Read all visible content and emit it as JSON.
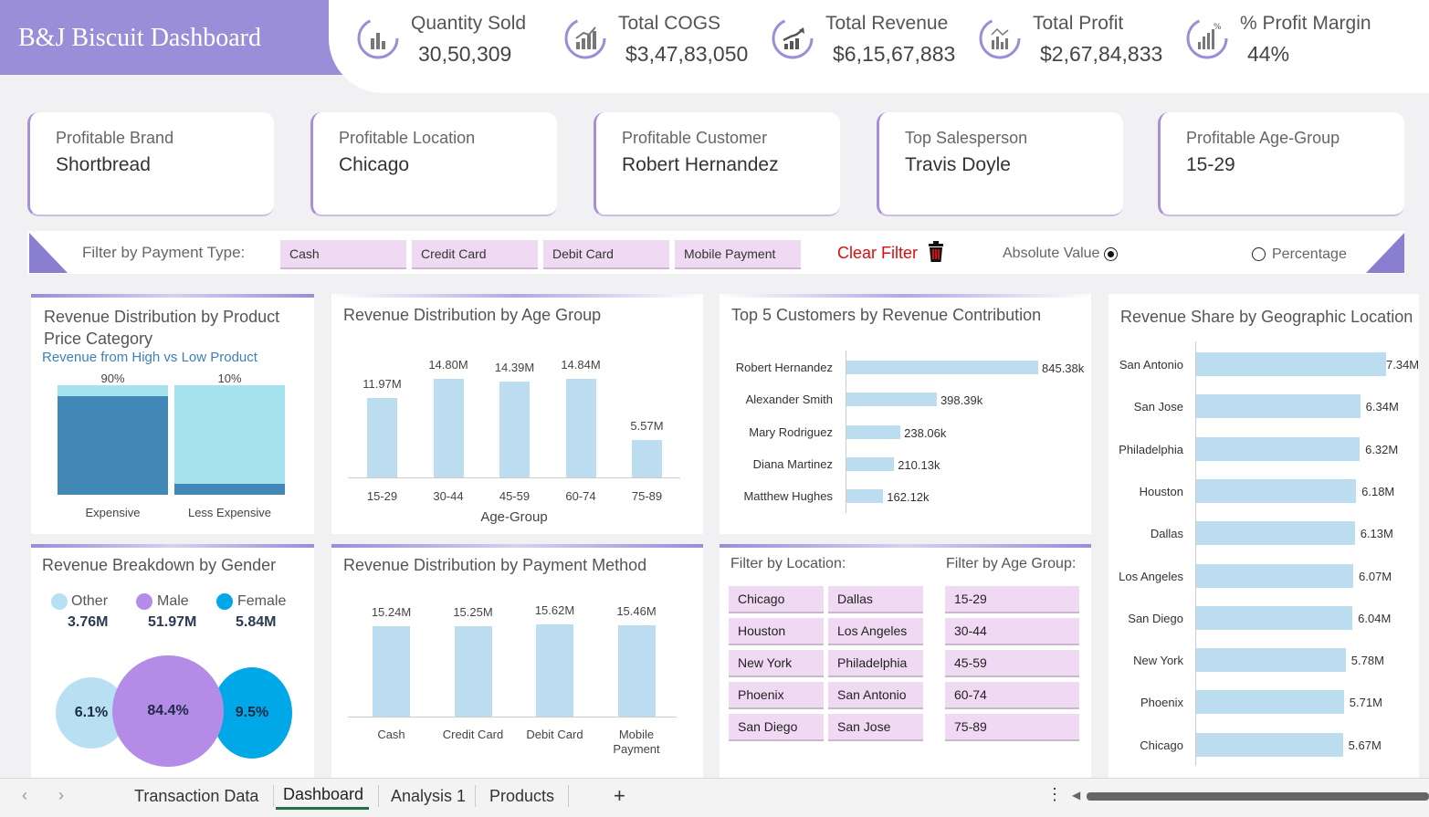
{
  "title": "B&J Biscuit Dashboard",
  "kpis": [
    {
      "icon": "bar-chart-icon",
      "label": "Quantity Sold",
      "value": "30,50,309"
    },
    {
      "icon": "growth-chart-icon",
      "label": "Total COGS",
      "value": "$3,47,83,050"
    },
    {
      "icon": "trend-up-icon",
      "label": "Total Revenue",
      "value": "$6,15,67,883"
    },
    {
      "icon": "analytics-icon",
      "label": "Total Profit",
      "value": "$2,67,84,833"
    },
    {
      "icon": "percent-chart-icon",
      "label": "% Profit Margin",
      "value": "44%"
    }
  ],
  "info_cards": [
    {
      "label": "Profitable Brand",
      "value": "Shortbread"
    },
    {
      "label": "Profitable Location",
      "value": "Chicago"
    },
    {
      "label": "Profitable Customer",
      "value": "Robert Hernandez"
    },
    {
      "label": "Top Salesperson",
      "value": "Travis Doyle"
    },
    {
      "label": "Profitable Age-Group",
      "value": "15-29"
    }
  ],
  "payment_filter": {
    "label": "Filter by Payment Type:",
    "options": [
      "Cash",
      "Credit Card",
      "Debit Card",
      "Mobile Payment"
    ],
    "clear_label": "Clear Filter",
    "absolute_label": "Absolute Value",
    "percentage_label": "Percentage",
    "selected": "Absolute Value"
  },
  "price_category": {
    "title": "Revenue Distribution by Product Price Category",
    "subtitle": "Revenue from High vs Low Product",
    "chart_data": {
      "type": "bar",
      "categories": [
        "Expensive",
        "Less Expensive"
      ],
      "series": [
        {
          "values": [
            90,
            10
          ],
          "labels": [
            "90%",
            "10%"
          ]
        }
      ],
      "ylim": [
        0,
        100
      ]
    }
  },
  "age_group": {
    "title": "Revenue Distribution by Age Group",
    "xlabel": "Age-Group",
    "chart_data": {
      "type": "bar",
      "categories": [
        "15-29",
        "30-44",
        "45-59",
        "60-74",
        "75-89"
      ],
      "values": [
        11.97,
        14.8,
        14.39,
        14.84,
        5.57
      ],
      "labels": [
        "11.97M",
        "14.80M",
        "14.39M",
        "14.84M",
        "5.57M"
      ],
      "ylim": [
        0,
        16
      ]
    }
  },
  "top_customers": {
    "title": "Top 5 Customers by Revenue Contribution",
    "chart_data": {
      "type": "bar",
      "categories": [
        "Robert Hernandez",
        "Alexander Smith",
        "Mary Rodriguez",
        "Diana Martinez",
        "Matthew Hughes"
      ],
      "values": [
        845.38,
        398.39,
        238.06,
        210.13,
        162.12
      ],
      "labels": [
        "845.38k",
        "398.39k",
        "238.06k",
        "210.13k",
        "162.12k"
      ]
    }
  },
  "geo": {
    "title": "Revenue Share by Geographic Location",
    "chart_data": {
      "type": "bar",
      "categories": [
        "San Antonio",
        "San Jose",
        "Philadelphia",
        "Houston",
        "Dallas",
        "Los Angeles",
        "San Diego",
        "New York",
        "Phoenix",
        "Chicago"
      ],
      "values": [
        7.34,
        6.34,
        6.32,
        6.18,
        6.13,
        6.07,
        6.04,
        5.78,
        5.71,
        5.67
      ],
      "labels": [
        "7.34M",
        "6.34M",
        "6.32M",
        "6.18M",
        "6.13M",
        "6.07M",
        "6.04M",
        "5.78M",
        "5.71M",
        "5.67M"
      ]
    }
  },
  "gender": {
    "title": "Revenue Breakdown by Gender",
    "legend": [
      {
        "label": "Other",
        "value": "3.76M",
        "color": "#b8e0f2"
      },
      {
        "label": "Male",
        "value": "51.97M",
        "color": "#b48ce8"
      },
      {
        "label": "Female",
        "value": "5.84M",
        "color": "#00a8e8"
      }
    ],
    "bubbles": [
      "6.1%",
      "84.4%",
      "9.5%"
    ]
  },
  "payment_method": {
    "title": "Revenue Distribution by Payment Method",
    "chart_data": {
      "type": "bar",
      "categories": [
        "Cash",
        "Credit Card",
        "Debit Card",
        "Mobile Payment"
      ],
      "values": [
        15.24,
        15.25,
        15.62,
        15.46
      ],
      "labels": [
        "15.24M",
        "15.25M",
        "15.62M",
        "15.46M"
      ],
      "ylim": [
        0,
        16
      ]
    }
  },
  "location_filter": {
    "label": "Filter by Location:",
    "options": [
      "Chicago",
      "Dallas",
      "Houston",
      "Los Angeles",
      "New York",
      "Philadelphia",
      "Phoenix",
      "San Antonio",
      "San Diego",
      "San Jose"
    ]
  },
  "age_filter": {
    "label": "Filter by Age Group:",
    "options": [
      "15-29",
      "30-44",
      "45-59",
      "60-74",
      "75-89"
    ]
  },
  "sheet_tabs": [
    "Transaction Data",
    "Dashboard",
    "Analysis 1",
    "Products"
  ],
  "active_tab": "Dashboard",
  "colors": {
    "accent": "#9b8ed8",
    "bar": "#bcdcf0",
    "slicer": "#f0d9f2",
    "dark_blue": "#4188b6",
    "light_cyan": "#a4e3ee"
  }
}
